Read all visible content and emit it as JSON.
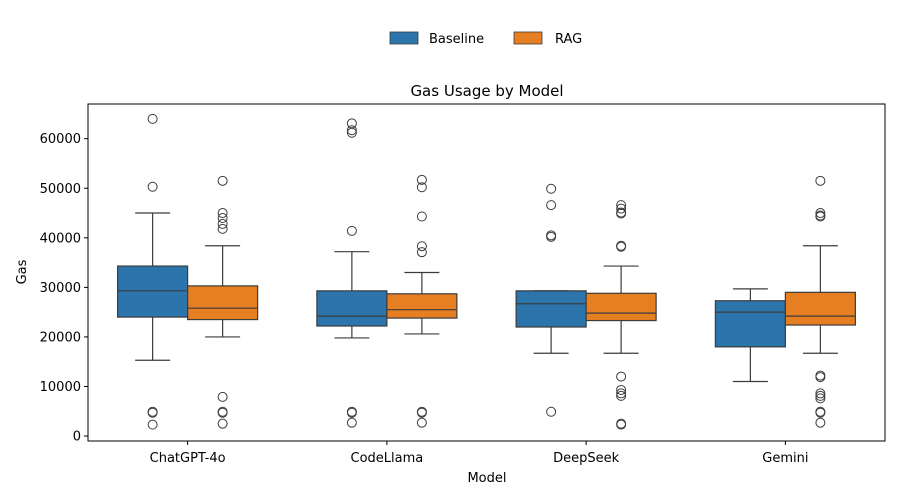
{
  "chart_data": {
    "type": "box",
    "title": "Gas Usage by Model",
    "xlabel": "Model",
    "ylabel": "Gas",
    "ylim": [
      -1000,
      67000
    ],
    "yticks": [
      0,
      10000,
      20000,
      30000,
      40000,
      50000,
      60000
    ],
    "ytick_labels": [
      "0",
      "10000",
      "20000",
      "30000",
      "40000",
      "50000",
      "60000"
    ],
    "categories": [
      "ChatGPT-4o",
      "CodeLlama",
      "DeepSeek",
      "Gemini"
    ],
    "legend": {
      "placement": "top-center-outside"
    },
    "series": [
      {
        "name": "Baseline",
        "color": "#2c74ac",
        "boxes": [
          {
            "whislo": 15300,
            "q1": 24000,
            "med": 29300,
            "q3": 34300,
            "whishi": 45000,
            "fliers": [
              64000,
              50300,
              4900,
              4700,
              2300
            ]
          },
          {
            "whislo": 19800,
            "q1": 22200,
            "med": 24200,
            "q3": 29300,
            "whishi": 37200,
            "fliers": [
              63100,
              61700,
              61200,
              41400,
              4900,
              4700,
              2700
            ]
          },
          {
            "whislo": 16700,
            "q1": 22000,
            "med": 26700,
            "q3": 29300,
            "whishi": 29300,
            "fliers": [
              49900,
              46600,
              40500,
              40200,
              4900
            ]
          },
          {
            "whislo": 11000,
            "q1": 18000,
            "med": 25000,
            "q3": 27300,
            "whishi": 29700,
            "fliers": []
          }
        ]
      },
      {
        "name": "RAG",
        "color": "#e67e22",
        "boxes": [
          {
            "whislo": 20000,
            "q1": 23500,
            "med": 25800,
            "q3": 30300,
            "whishi": 38400,
            "fliers": [
              51500,
              45000,
              44000,
              42800,
              41800,
              7900,
              4900,
              4700,
              2500
            ]
          },
          {
            "whislo": 20600,
            "q1": 23800,
            "med": 25500,
            "q3": 28700,
            "whishi": 33000,
            "fliers": [
              51700,
              50200,
              44300,
              38300,
              37100,
              4900,
              4700,
              2700
            ]
          },
          {
            "whislo": 16700,
            "q1": 23300,
            "med": 24800,
            "q3": 28800,
            "whishi": 34300,
            "fliers": [
              46600,
              45900,
              45100,
              44900,
              38400,
              38200,
              12000,
              9300,
              8600,
              8100,
              2500,
              2300
            ]
          },
          {
            "whislo": 16700,
            "q1": 22400,
            "med": 24200,
            "q3": 29000,
            "whishi": 38400,
            "fliers": [
              51500,
              45000,
              44500,
              44300,
              12200,
              11900,
              8600,
              8100,
              7600,
              4900,
              4700,
              2700
            ]
          }
        ]
      }
    ]
  }
}
